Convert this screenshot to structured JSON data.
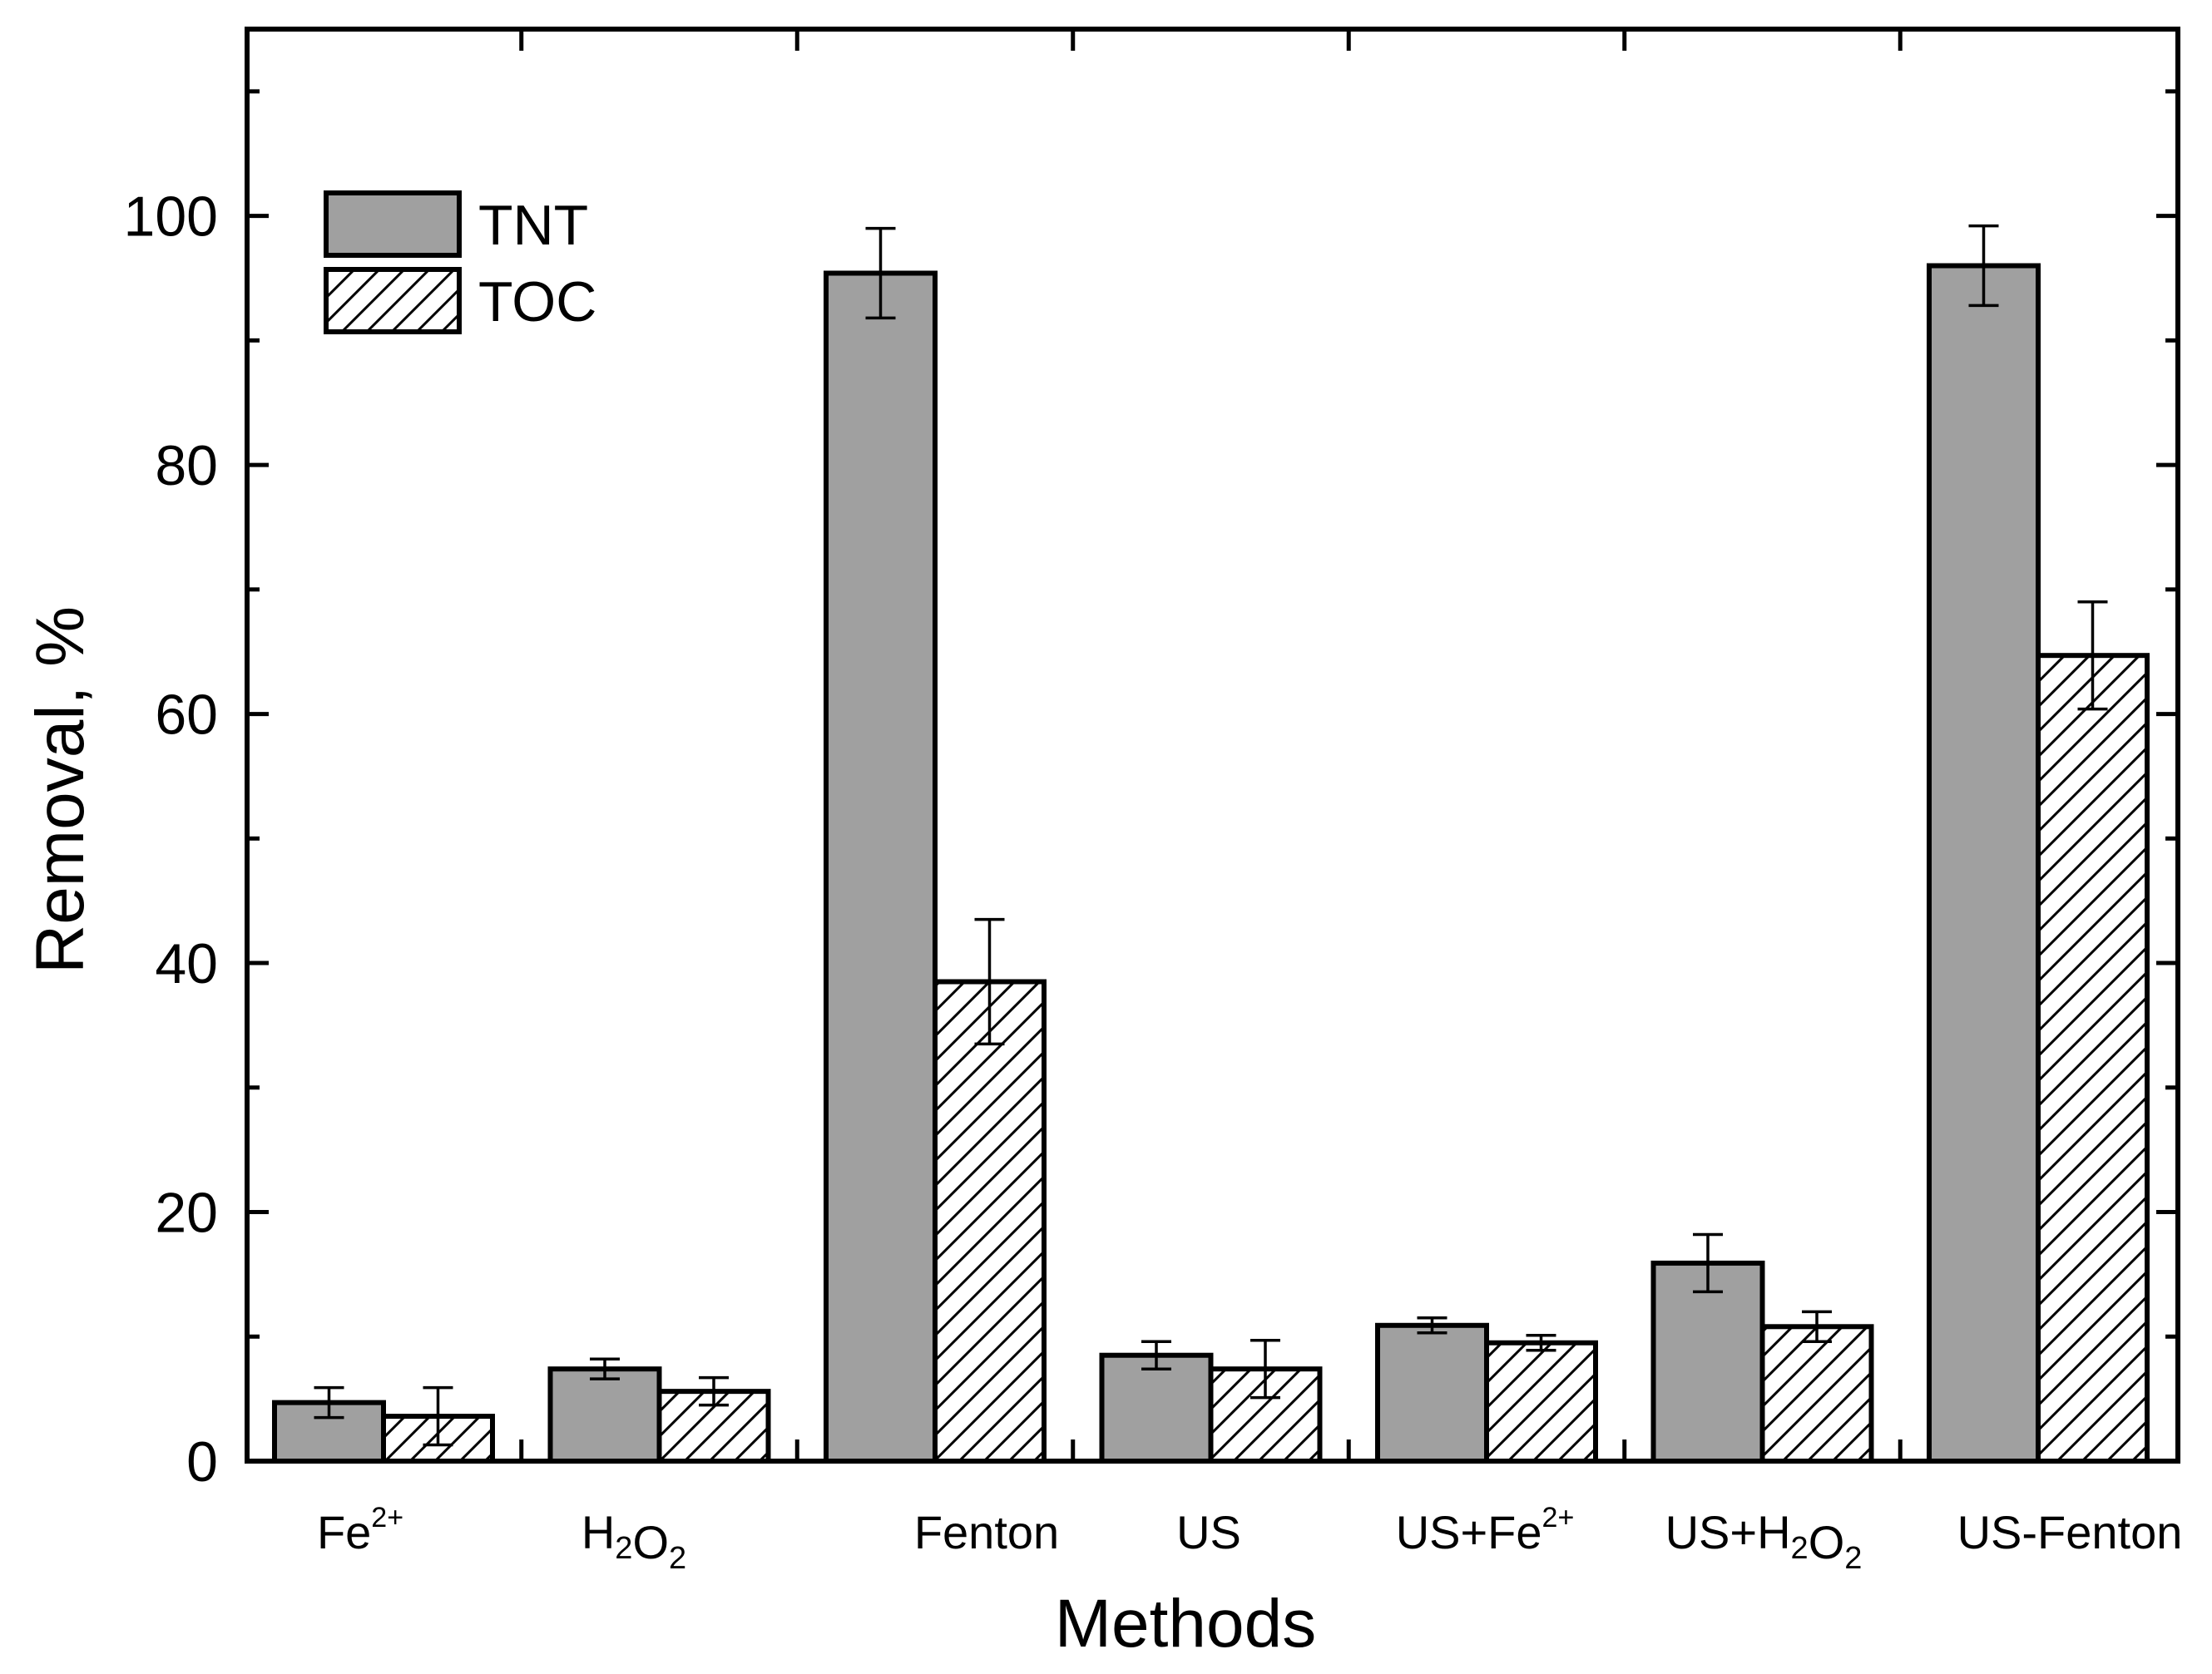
{
  "chart_data": {
    "type": "bar",
    "title": "",
    "xlabel": "Methods",
    "ylabel": "Removal, %",
    "ylim": [
      0,
      115
    ],
    "yticks": [
      0,
      20,
      40,
      60,
      80,
      100
    ],
    "yminor_step": 10,
    "grid": false,
    "legend_position": "top-left",
    "categories": [
      {
        "base": "Fe",
        "sup": "2+"
      },
      {
        "parts": [
          {
            "t": "H"
          },
          {
            "sub": "2"
          },
          {
            "t": "O"
          },
          {
            "sub": "2"
          }
        ]
      },
      {
        "base": "Fenton"
      },
      {
        "base": "US"
      },
      {
        "base": "US+Fe",
        "sup": "2+"
      },
      {
        "parts": [
          {
            "t": "US+H"
          },
          {
            "sub": "2"
          },
          {
            "t": "O"
          },
          {
            "sub": "2"
          }
        ]
      },
      {
        "base": "US-Fenton"
      }
    ],
    "series": [
      {
        "name": "TNT",
        "fill": "solid",
        "color": "#a0a0a0",
        "values": [
          4.7,
          7.4,
          95.4,
          8.5,
          10.9,
          15.9,
          96.0
        ],
        "errors": [
          1.2,
          0.8,
          3.6,
          1.1,
          0.6,
          2.3,
          3.2
        ]
      },
      {
        "name": "TOC",
        "fill": "hatched",
        "color": "#ffffff",
        "values": [
          3.6,
          5.6,
          38.5,
          7.4,
          9.5,
          10.8,
          64.7
        ],
        "errors": [
          2.3,
          1.1,
          5.0,
          2.3,
          0.6,
          1.2,
          4.3
        ]
      }
    ]
  }
}
